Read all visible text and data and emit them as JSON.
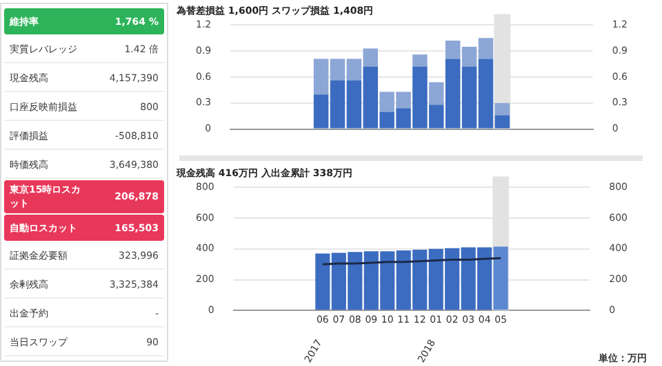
{
  "chart_data": [
    {
      "type": "other",
      "categories": [
        "維持率",
        "実質レバレッジ",
        "現金残高",
        "口座反映前損益",
        "評価損益",
        "時価残高",
        "東京15時ロスカット",
        "自動ロスカット",
        "証拠金必要額",
        "余剰残高",
        "出金予約",
        "当日スワップ"
      ],
      "value_labels": [
        "1,764 %",
        "1.42 倍",
        "4,157,390",
        "800",
        "-508,810",
        "3,649,380",
        "206,878",
        "165,503",
        "323,996",
        "3,325,384",
        "-",
        "90"
      ],
      "colors": [
        "#2db45a",
        null,
        null,
        null,
        null,
        null,
        "#e8385a",
        "#e8385a",
        null,
        null,
        null,
        null
      ]
    },
    {
      "type": "bar",
      "title": "為替差損益 1,600円 スワップ損益 1,408円",
      "stacked": true,
      "categories": [
        null,
        null,
        null,
        null,
        null,
        "06",
        "07",
        "08",
        "09",
        "10",
        "11",
        "12",
        "01",
        "02",
        "03",
        "04",
        "05",
        null,
        null,
        null,
        null,
        null
      ],
      "series": [
        {
          "color": "#3b6cc0",
          "values": [
            null,
            null,
            null,
            null,
            null,
            0.4,
            0.56,
            0.56,
            0.72,
            0.2,
            0.24,
            0.72,
            0.28,
            0.81,
            0.72,
            0.81,
            0.16,
            null,
            null,
            null,
            null,
            null
          ]
        },
        {
          "color": "#8ca6d6",
          "values": [
            null,
            null,
            null,
            null,
            null,
            0.41,
            0.25,
            0.25,
            0.21,
            0.23,
            0.19,
            0.14,
            0.26,
            0.21,
            0.23,
            0.24,
            0.14,
            null,
            null,
            null,
            null,
            null
          ]
        }
      ],
      "ylim": [
        0,
        1.2
      ],
      "yticks": [
        0,
        {
          "value": 0.3,
          "label": "0.3"
        },
        {
          "value": 0.6,
          "label": "0.6"
        },
        {
          "value": 0.9,
          "label": "0.9"
        },
        {
          "value": 1.2,
          "label": "1.2"
        }
      ],
      "y2lim": [
        0,
        1.2
      ],
      "y2ticks": [
        0,
        {
          "value": 0.3,
          "label": "0.3"
        },
        {
          "value": 0.6,
          "label": "0.6"
        },
        {
          "value": 0.9,
          "label": "0.9"
        },
        {
          "value": 1.2,
          "label": "1.2"
        }
      ],
      "grid": "y",
      "tick_labels": "y",
      "legend": false,
      "bands": [
        {
          "axis": "x",
          "from": "05",
          "to": "05",
          "color": "#e2e2e2"
        }
      ]
    },
    {
      "type": "bar",
      "title": "現金残高 416万円 入出金累計 338万円",
      "categories": [
        null,
        null,
        null,
        null,
        null,
        "06",
        "07",
        "08",
        "09",
        "10",
        "11",
        "12",
        "01",
        "02",
        "03",
        "04",
        "05",
        null,
        null,
        null,
        null,
        null
      ],
      "series": [
        {
          "type": "bar",
          "colors": [
            "#3b6cc0",
            "#3b6cc0",
            "#3b6cc0",
            "#3b6cc0",
            "#3b6cc0",
            "#3b6cc0",
            "#3b6cc0",
            "#3b6cc0",
            "#3b6cc0",
            "#3b6cc0",
            "#3b6cc0",
            "#3b6cc0",
            "#3b6cc0",
            "#3b6cc0",
            "#3b6cc0",
            "#3b6cc0",
            "#5b88d0",
            "#3b6cc0",
            "#3b6cc0",
            "#3b6cc0",
            "#3b6cc0",
            "#3b6cc0"
          ],
          "values": [
            null,
            null,
            null,
            null,
            null,
            370,
            375,
            380,
            385,
            385,
            390,
            395,
            400,
            405,
            410,
            410,
            415,
            null,
            null,
            null,
            null,
            null
          ]
        },
        {
          "type": "line",
          "color": "#1c2a48",
          "values": [
            null,
            null,
            null,
            null,
            null,
            300,
            305,
            305,
            310,
            315,
            315,
            320,
            325,
            330,
            330,
            335,
            340,
            null,
            null,
            null,
            null,
            null
          ]
        }
      ],
      "ylim": [
        0,
        800
      ],
      "yticks": [
        0,
        200,
        400,
        600,
        800
      ],
      "y2lim": [
        0,
        800
      ],
      "y2ticks": [
        0,
        200,
        400,
        600,
        800
      ],
      "grid": "y",
      "legend": false,
      "marker": "none",
      "bands": [
        {
          "axis": "x",
          "from": "05",
          "to": "05",
          "color": "#e2e2e2"
        }
      ],
      "annotations": [
        "2017",
        "2018",
        "単位：万円"
      ]
    }
  ]
}
